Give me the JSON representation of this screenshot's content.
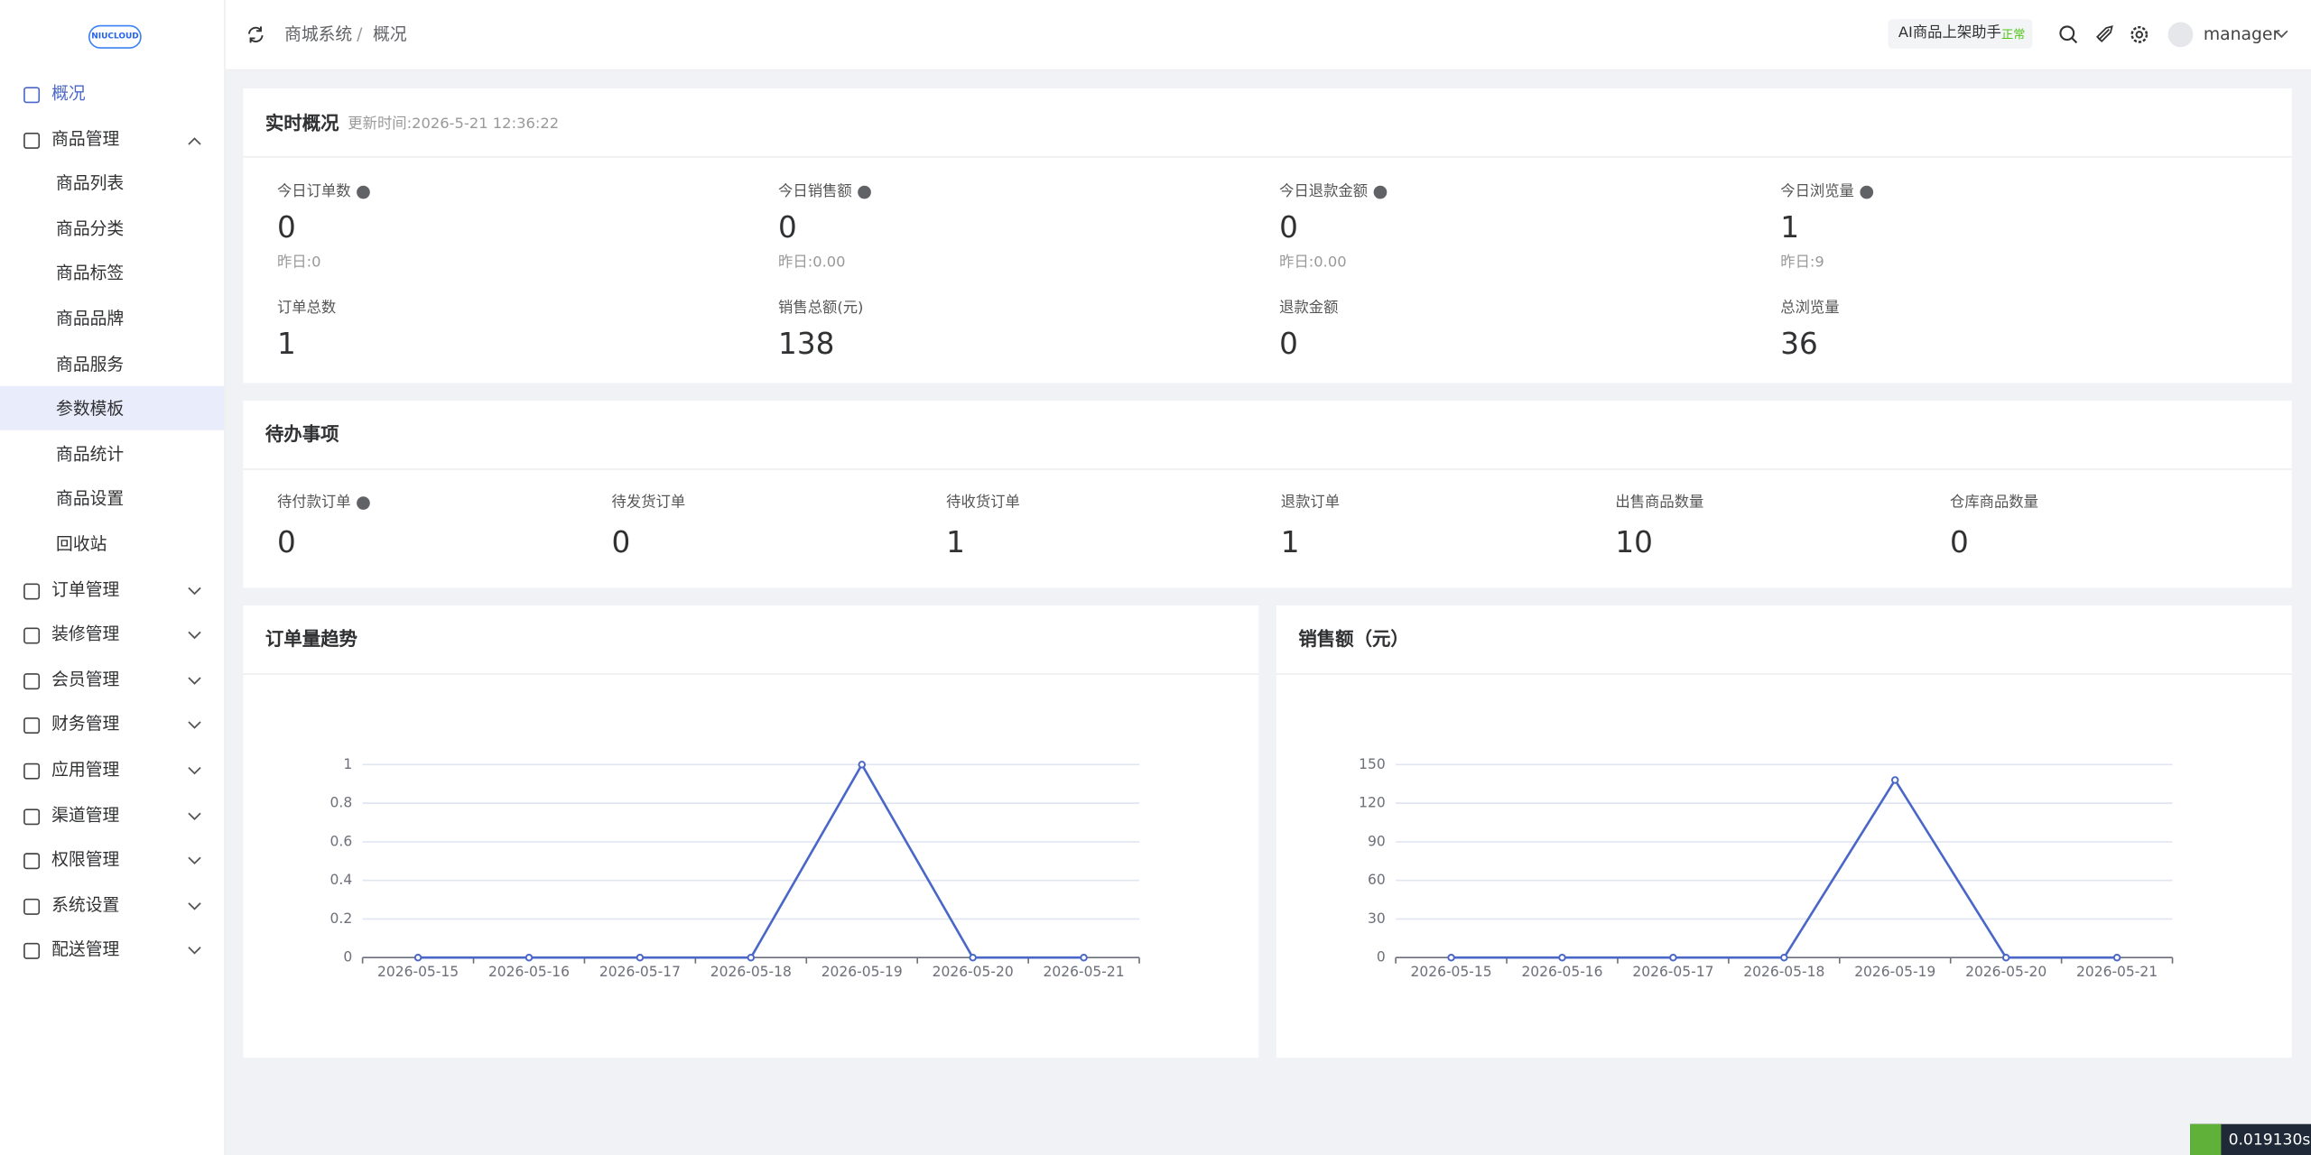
{
  "sidebar": {
    "logo": "NIUCLOUD",
    "menu": [
      {
        "label": "概况"
      },
      {
        "label": "商品管理",
        "children": [
          "商品列表",
          "商品分类",
          "商品标签",
          "商品品牌",
          "商品服务",
          "参数模板",
          "商品统计",
          "商品设置",
          "回收站"
        ]
      },
      {
        "label": "订单管理"
      },
      {
        "label": "装修管理"
      },
      {
        "label": "会员管理"
      },
      {
        "label": "财务管理"
      },
      {
        "label": "应用管理"
      },
      {
        "label": "渠道管理"
      },
      {
        "label": "权限管理"
      },
      {
        "label": "系统设置"
      },
      {
        "label": "配送管理"
      }
    ]
  },
  "header": {
    "breadcrumb": [
      "商城系统",
      "概况"
    ],
    "assistant": "AI商品上架助手",
    "assistant_status": "正常",
    "user": "manager"
  },
  "realtime": {
    "title": "实时概况",
    "updated": "更新时间:2026-5-21 12:36:22",
    "stats": [
      {
        "label": "今日订单数",
        "value": 0,
        "yesterday": "昨日:0",
        "help": true
      },
      {
        "label": "今日销售额",
        "value": 0,
        "yesterday": "昨日:0.00",
        "help": true
      },
      {
        "label": "今日退款金额",
        "value": 0,
        "yesterday": "昨日:0.00",
        "help": true
      },
      {
        "label": "今日浏览量",
        "value": 1,
        "yesterday": "昨日:9",
        "help": true
      }
    ],
    "totals": [
      {
        "label": "订单总数",
        "value": 1
      },
      {
        "label": "销售总额(元)",
        "value": 138
      },
      {
        "label": "退款金额",
        "value": 0
      },
      {
        "label": "总浏览量",
        "value": 36
      }
    ]
  },
  "todo": {
    "title": "待办事项",
    "items": [
      {
        "label": "待付款订单",
        "value": 0,
        "help": true
      },
      {
        "label": "待发货订单",
        "value": 0
      },
      {
        "label": "待收货订单",
        "value": 1
      },
      {
        "label": "退款订单",
        "value": 1
      },
      {
        "label": "出售商品数量",
        "value": 10
      },
      {
        "label": "仓库商品数量",
        "value": 0
      }
    ]
  },
  "chart_data": [
    {
      "type": "line",
      "title": "订单量趋势",
      "categories": [
        "2026-05-15",
        "2026-05-16",
        "2026-05-17",
        "2026-05-18",
        "2026-05-19",
        "2026-05-20",
        "2026-05-21"
      ],
      "values": [
        0,
        0,
        0,
        0,
        1,
        0,
        0
      ],
      "color": "#4a67c8",
      "ylim": [
        0,
        1
      ],
      "yticks": [
        0,
        0.2,
        0.4,
        0.6,
        0.8,
        1
      ],
      "grid": true
    },
    {
      "type": "line",
      "title": "销售额（元）",
      "categories": [
        "2026-05-15",
        "2026-05-16",
        "2026-05-17",
        "2026-05-18",
        "2026-05-19",
        "2026-05-20",
        "2026-05-21"
      ],
      "values": [
        0,
        0,
        0,
        0,
        138,
        0,
        0
      ],
      "color": "#4a67c8",
      "ylim": [
        0,
        150
      ],
      "yticks": [
        0,
        30,
        60,
        90,
        120,
        150
      ],
      "grid": true
    }
  ],
  "timer": "0.019130s"
}
